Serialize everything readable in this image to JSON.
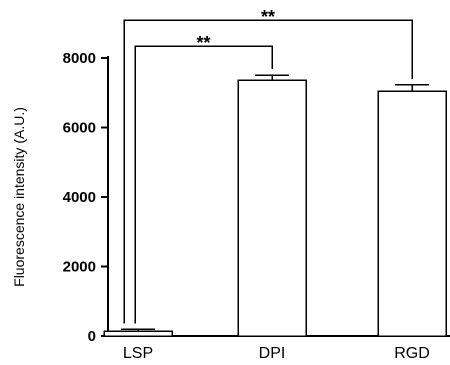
{
  "chart_data": {
    "type": "bar",
    "categories": [
      "LSP",
      "DPI",
      "RGD"
    ],
    "values": [
      130,
      7360,
      7050
    ],
    "errors": [
      60,
      150,
      180
    ],
    "ylabel": "Fluorescence intensity (A.U.)",
    "xlabel": "",
    "ylim": [
      0,
      8000
    ],
    "yticks": [
      0,
      2000,
      4000,
      6000,
      8000
    ],
    "ytick_labels": [
      "0",
      "2000",
      "4000",
      "6000",
      "8000"
    ],
    "grid": false,
    "significance": [
      {
        "from": "LSP",
        "to": "DPI",
        "label": "**"
      },
      {
        "from": "LSP",
        "to": "RGD",
        "label": "**"
      }
    ]
  }
}
